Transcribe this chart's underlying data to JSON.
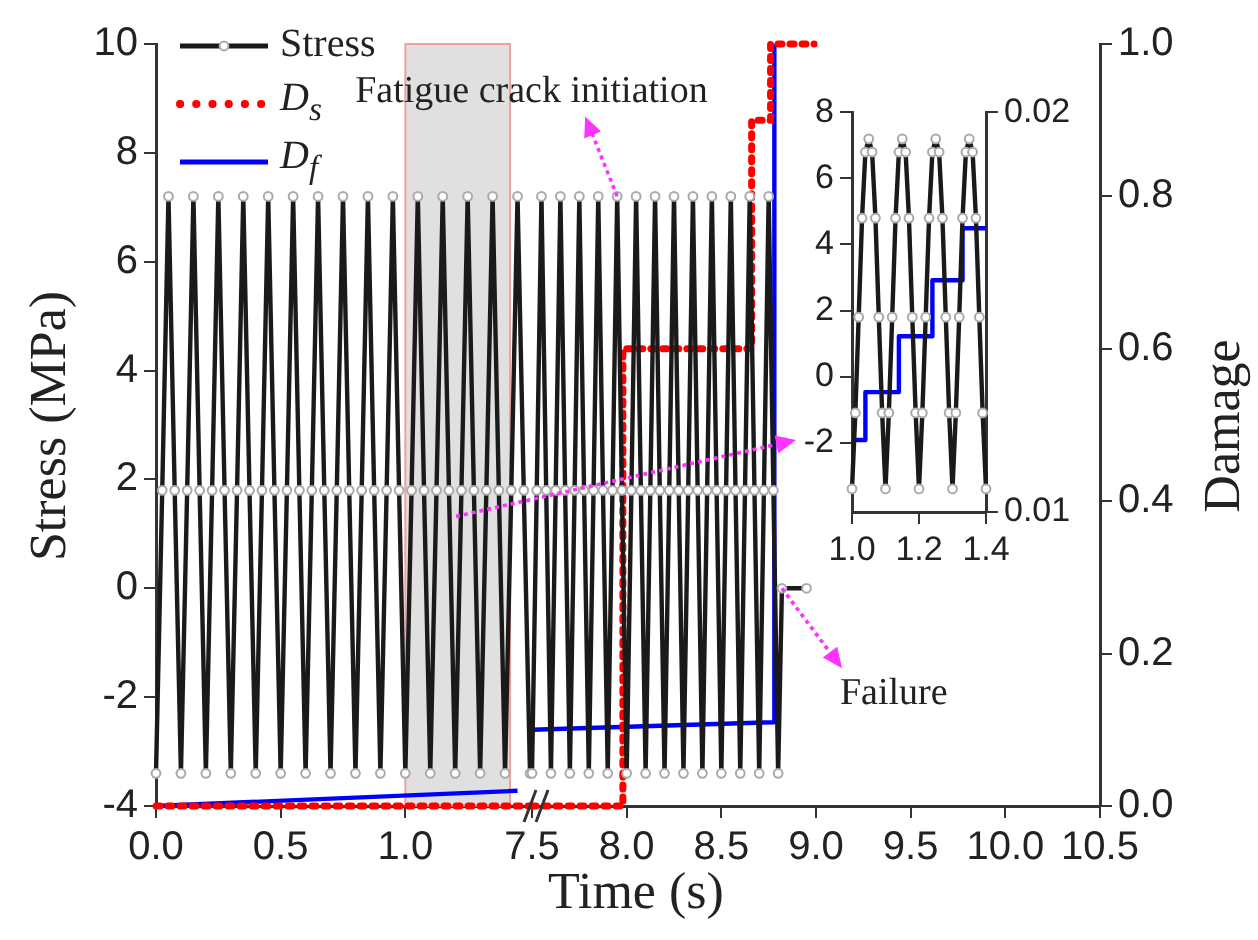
{
  "chart_data": [
    {
      "type": "line",
      "xlabel": "Time (s)",
      "ylabel": "Stress (MPa)",
      "xlim": [
        0,
        1.5
      ],
      "xticks": [
        {
          "value": 0,
          "label": "0.0"
        },
        {
          "value": 0.5,
          "label": "0.5"
        },
        {
          "value": 1,
          "label": "1.0"
        }
      ],
      "ylim": [
        -4,
        10
      ],
      "yticks": [
        -4,
        -2,
        0,
        2,
        4,
        6,
        8,
        10
      ],
      "y2lim": [
        0,
        1
      ],
      "legend": "top left",
      "bands": [
        {
          "axis": "x",
          "from": 1.0,
          "to": 1.42,
          "color": "#e0e0e0"
        }
      ],
      "series": [
        {
          "name": "Stress",
          "color": "#1a1a1a",
          "marker": "circle",
          "line_style": "solid",
          "x": [
            0,
            0.025,
            0.05,
            0.075,
            0.1,
            0.125,
            0.15,
            0.175,
            0.2,
            0.225,
            0.25,
            0.275,
            0.3,
            0.325,
            0.35,
            0.375,
            0.4,
            0.425,
            0.45,
            0.475,
            0.5,
            0.525,
            0.55,
            0.575,
            0.6,
            0.625,
            0.65,
            0.675,
            0.7,
            0.725,
            0.75,
            0.775,
            0.8,
            0.825,
            0.85,
            0.875,
            0.9,
            0.925,
            0.95,
            0.975,
            1.0,
            1.025,
            1.05,
            1.075,
            1.1,
            1.125,
            1.15,
            1.175,
            1.2,
            1.225,
            1.25,
            1.275,
            1.3,
            1.325,
            1.35,
            1.375,
            1.4,
            1.425,
            1.45,
            1.475,
            1.5
          ],
          "values": [
            -3.4,
            1.8,
            7.2,
            1.8,
            -3.4,
            1.8,
            7.2,
            1.8,
            -3.4,
            1.8,
            7.2,
            1.8,
            -3.4,
            1.8,
            7.2,
            1.8,
            -3.4,
            1.8,
            7.2,
            1.8,
            -3.4,
            1.8,
            7.2,
            1.8,
            -3.4,
            1.8,
            7.2,
            1.8,
            -3.4,
            1.8,
            7.2,
            1.8,
            -3.4,
            1.8,
            7.2,
            1.8,
            -3.4,
            1.8,
            7.2,
            1.8,
            -3.4,
            1.8,
            7.2,
            1.8,
            -3.4,
            1.8,
            7.2,
            1.8,
            -3.4,
            1.8,
            7.2,
            1.8,
            -3.4,
            1.8,
            7.2,
            1.8,
            -3.4,
            1.8,
            7.2,
            1.8,
            -3.4
          ]
        },
        {
          "name": "D$_{s}$",
          "color": "#ff0000",
          "axis": "y2",
          "line_style": "dotted",
          "x": [
            0,
            1.5
          ],
          "values": [
            0,
            0
          ]
        },
        {
          "name": "D$_{f}$",
          "color": "#0000ff",
          "axis": "y2",
          "line_style": "solid",
          "x": [
            0,
            1.45
          ],
          "values": [
            0,
            0.02
          ]
        }
      ]
    },
    {
      "type": "line",
      "xlim": [
        7.5,
        10.5
      ],
      "xticks": [
        7.5,
        {
          "value": 8,
          "label": "8.0"
        },
        8.5,
        {
          "value": 9,
          "label": "9.0"
        },
        9.5,
        {
          "value": 10,
          "label": "10.0"
        },
        10.5
      ],
      "ylim": [
        -4,
        10
      ],
      "y2label": "Damage",
      "y2lim": [
        0,
        1
      ],
      "y2ticks": [
        {
          "value": 0,
          "label": "0.0"
        },
        0.2,
        0.4,
        0.6,
        0.8,
        {
          "value": 1,
          "label": "1.0"
        }
      ],
      "annotations": [
        {
          "text": "Fatigue crack initiation",
          "x": 7.95,
          "y": 7.2
        },
        {
          "text": "Failure",
          "x": 8.82,
          "y": 0
        }
      ],
      "series": [
        {
          "color": "#1a1a1a",
          "marker": "circle",
          "line_style": "solid",
          "x": [
            7.5,
            7.525,
            7.55,
            7.575,
            7.6,
            7.625,
            7.65,
            7.675,
            7.7,
            7.725,
            7.75,
            7.775,
            7.8,
            7.825,
            7.85,
            7.875,
            7.9,
            7.925,
            7.95,
            7.975,
            8.0,
            8.025,
            8.05,
            8.075,
            8.1,
            8.125,
            8.15,
            8.175,
            8.2,
            8.225,
            8.25,
            8.275,
            8.3,
            8.325,
            8.35,
            8.375,
            8.4,
            8.425,
            8.45,
            8.475,
            8.5,
            8.525,
            8.55,
            8.575,
            8.6,
            8.625,
            8.65,
            8.675,
            8.7,
            8.725,
            8.75,
            8.775,
            8.8,
            8.82,
            8.95
          ],
          "values": [
            -3.4,
            1.8,
            7.2,
            1.8,
            -3.4,
            1.8,
            7.2,
            1.8,
            -3.4,
            1.8,
            7.2,
            1.8,
            -3.4,
            1.8,
            7.2,
            1.8,
            -3.4,
            1.8,
            7.2,
            1.8,
            -3.4,
            1.8,
            7.2,
            1.8,
            -3.4,
            1.8,
            7.2,
            1.8,
            -3.4,
            1.8,
            7.2,
            1.8,
            -3.4,
            1.8,
            7.2,
            1.8,
            -3.4,
            1.8,
            7.2,
            1.8,
            -3.4,
            1.8,
            7.2,
            1.8,
            -3.4,
            1.8,
            7.2,
            1.8,
            -3.4,
            1.8,
            7.2,
            1.8,
            -3.4,
            0,
            0
          ]
        },
        {
          "color": "#ff0000",
          "axis": "y2",
          "line_style": "dotted",
          "x": [
            7.5,
            7.98,
            7.98,
            8.66,
            8.66,
            8.76,
            8.76,
            8.99
          ],
          "values": [
            0,
            0,
            0.6,
            0.6,
            0.9,
            0.9,
            1.0,
            1.0
          ]
        },
        {
          "color": "#0000ff",
          "axis": "y2",
          "line_style": "solid",
          "x": [
            7.5,
            8.78,
            8.78
          ],
          "values": [
            0.1,
            0.11,
            1.0
          ]
        }
      ]
    },
    {
      "type": "line",
      "xlim": [
        1.0,
        1.4
      ],
      "xticks": [
        {
          "value": 1,
          "label": "1.0"
        },
        1.2,
        1.4
      ],
      "ylim": [
        -4.1,
        8
      ],
      "yticks": [
        -2,
        0,
        2,
        4,
        6,
        8
      ],
      "y2lim": [
        0.01,
        0.02
      ],
      "y2ticks": [
        0.01,
        0.02
      ],
      "series": [
        {
          "color": "#1a1a1a",
          "marker": "circle",
          "line_style": "solid",
          "x": [
            1.0,
            1.01,
            1.02,
            1.03,
            1.04,
            1.05,
            1.06,
            1.07,
            1.08,
            1.09,
            1.1,
            1.11,
            1.12,
            1.13,
            1.14,
            1.15,
            1.16,
            1.17,
            1.18,
            1.19,
            1.2,
            1.21,
            1.22,
            1.23,
            1.24,
            1.25,
            1.26,
            1.27,
            1.28,
            1.29,
            1.3,
            1.31,
            1.32,
            1.33,
            1.34,
            1.35,
            1.36,
            1.37,
            1.38,
            1.39,
            1.4
          ],
          "values": [
            -3.4,
            -1.1,
            1.8,
            4.8,
            6.8,
            7.2,
            6.8,
            4.8,
            1.8,
            -1.1,
            -3.4,
            -1.1,
            1.8,
            4.8,
            6.8,
            7.2,
            6.8,
            4.8,
            1.8,
            -1.1,
            -3.4,
            -1.1,
            1.8,
            4.8,
            6.8,
            7.2,
            6.8,
            4.8,
            1.8,
            -1.1,
            -3.4,
            -1.1,
            1.8,
            4.8,
            6.8,
            7.2,
            6.8,
            4.8,
            1.8,
            -1.1,
            -3.4
          ]
        },
        {
          "color": "#0000ff",
          "axis": "y2",
          "line_style": "solid",
          "x": [
            1.0,
            1.04,
            1.04,
            1.14,
            1.14,
            1.24,
            1.24,
            1.33,
            1.33,
            1.4
          ],
          "values": [
            0.0118,
            0.0118,
            0.013,
            0.013,
            0.0144,
            0.0144,
            0.0158,
            0.0158,
            0.0171,
            0.0171
          ]
        }
      ]
    }
  ]
}
